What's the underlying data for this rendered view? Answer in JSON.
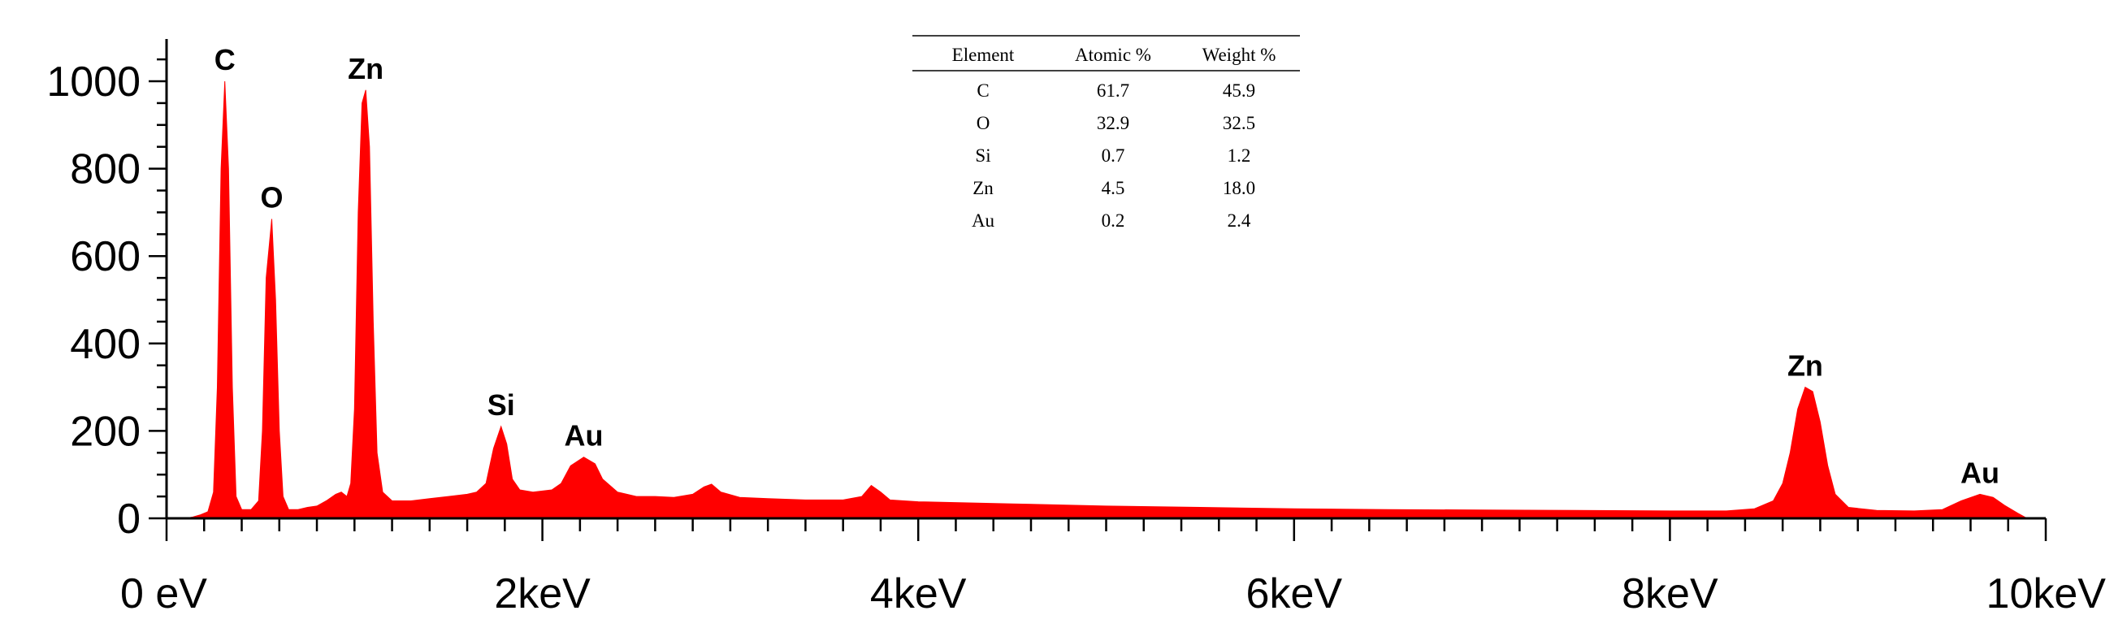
{
  "chart_data": {
    "type": "area",
    "title": "",
    "xlabel": "",
    "ylabel": "",
    "xlim": [
      0,
      10
    ],
    "ylim": [
      0,
      1100
    ],
    "color": "#ff0000",
    "x_ticks": [
      0,
      2,
      4,
      6,
      8,
      10
    ],
    "x_tick_labels": [
      "0 eV",
      "2keV",
      "4keV",
      "6keV",
      "8keV",
      "10keV"
    ],
    "y_ticks": [
      0,
      200,
      400,
      600,
      800,
      1000
    ],
    "y_tick_labels": [
      "0",
      "200",
      "400",
      "600",
      "800",
      "1000"
    ],
    "peaks": [
      {
        "label": "C",
        "x": 0.31,
        "y": 1000
      },
      {
        "label": "O",
        "x": 0.56,
        "y": 685
      },
      {
        "label": "Zn",
        "x": 1.06,
        "y": 980
      },
      {
        "label": "Si",
        "x": 1.78,
        "y": 210
      },
      {
        "label": "Au",
        "x": 2.22,
        "y": 140
      },
      {
        "label": "Zn",
        "x": 8.72,
        "y": 300
      },
      {
        "label": "Au",
        "x": 9.65,
        "y": 55
      }
    ],
    "spectrum": [
      [
        0.1,
        0
      ],
      [
        0.14,
        3
      ],
      [
        0.18,
        8
      ],
      [
        0.22,
        15
      ],
      [
        0.25,
        60
      ],
      [
        0.27,
        300
      ],
      [
        0.29,
        800
      ],
      [
        0.31,
        1000
      ],
      [
        0.33,
        800
      ],
      [
        0.35,
        300
      ],
      [
        0.37,
        50
      ],
      [
        0.4,
        20
      ],
      [
        0.45,
        20
      ],
      [
        0.49,
        40
      ],
      [
        0.51,
        200
      ],
      [
        0.53,
        550
      ],
      [
        0.56,
        685
      ],
      [
        0.58,
        500
      ],
      [
        0.6,
        200
      ],
      [
        0.62,
        50
      ],
      [
        0.65,
        20
      ],
      [
        0.7,
        20
      ],
      [
        0.75,
        25
      ],
      [
        0.8,
        28
      ],
      [
        0.85,
        40
      ],
      [
        0.9,
        55
      ],
      [
        0.93,
        60
      ],
      [
        0.96,
        50
      ],
      [
        0.98,
        80
      ],
      [
        1.0,
        250
      ],
      [
        1.02,
        700
      ],
      [
        1.04,
        950
      ],
      [
        1.06,
        980
      ],
      [
        1.08,
        850
      ],
      [
        1.1,
        450
      ],
      [
        1.12,
        150
      ],
      [
        1.15,
        60
      ],
      [
        1.2,
        40
      ],
      [
        1.3,
        40
      ],
      [
        1.4,
        45
      ],
      [
        1.5,
        50
      ],
      [
        1.6,
        55
      ],
      [
        1.65,
        60
      ],
      [
        1.7,
        80
      ],
      [
        1.74,
        160
      ],
      [
        1.78,
        210
      ],
      [
        1.81,
        170
      ],
      [
        1.84,
        90
      ],
      [
        1.88,
        65
      ],
      [
        1.95,
        60
      ],
      [
        2.05,
        65
      ],
      [
        2.1,
        80
      ],
      [
        2.15,
        120
      ],
      [
        2.22,
        140
      ],
      [
        2.28,
        125
      ],
      [
        2.32,
        90
      ],
      [
        2.4,
        60
      ],
      [
        2.5,
        50
      ],
      [
        2.6,
        50
      ],
      [
        2.7,
        48
      ],
      [
        2.8,
        55
      ],
      [
        2.86,
        72
      ],
      [
        2.9,
        78
      ],
      [
        2.95,
        60
      ],
      [
        3.05,
        48
      ],
      [
        3.2,
        45
      ],
      [
        3.4,
        42
      ],
      [
        3.6,
        42
      ],
      [
        3.7,
        50
      ],
      [
        3.75,
        75
      ],
      [
        3.8,
        60
      ],
      [
        3.85,
        42
      ],
      [
        4.0,
        38
      ],
      [
        4.5,
        33
      ],
      [
        5.0,
        28
      ],
      [
        5.5,
        25
      ],
      [
        6.0,
        22
      ],
      [
        6.5,
        20
      ],
      [
        7.0,
        19
      ],
      [
        7.5,
        18
      ],
      [
        8.0,
        17
      ],
      [
        8.3,
        17
      ],
      [
        8.45,
        22
      ],
      [
        8.55,
        40
      ],
      [
        8.6,
        80
      ],
      [
        8.64,
        150
      ],
      [
        8.68,
        250
      ],
      [
        8.72,
        300
      ],
      [
        8.76,
        290
      ],
      [
        8.8,
        220
      ],
      [
        8.84,
        120
      ],
      [
        8.88,
        55
      ],
      [
        8.95,
        25
      ],
      [
        9.1,
        18
      ],
      [
        9.3,
        17
      ],
      [
        9.45,
        20
      ],
      [
        9.55,
        40
      ],
      [
        9.65,
        55
      ],
      [
        9.72,
        48
      ],
      [
        9.78,
        30
      ],
      [
        9.85,
        12
      ],
      [
        9.9,
        0
      ]
    ]
  },
  "table": {
    "headers": [
      "Element",
      "Atomic %",
      "Weight %"
    ],
    "rows": [
      [
        "C",
        "61.7",
        "45.9"
      ],
      [
        "O",
        "32.9",
        "32.5"
      ],
      [
        "Si",
        "0.7",
        "1.2"
      ],
      [
        "Zn",
        "4.5",
        "18.0"
      ],
      [
        "Au",
        "0.2",
        "2.4"
      ]
    ]
  }
}
